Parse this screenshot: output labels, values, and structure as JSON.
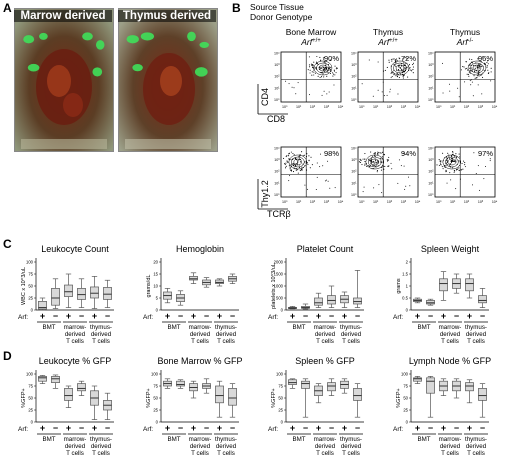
{
  "panel_letters": {
    "a": "A",
    "b": "B",
    "c": "C",
    "d": "D"
  },
  "photos": [
    {
      "label": "Marrow derived",
      "gfp_spots": 6
    },
    {
      "label": "Thymus derived",
      "gfp_spots": 6
    }
  ],
  "flow": {
    "header_line1": "Source Tissue",
    "header_line2": "Donor Genotype",
    "columns": [
      {
        "tissue": "Bone Marrow",
        "genotype": "Arf",
        "genotype_sup": "+/+"
      },
      {
        "tissue": "Thymus",
        "genotype": "Arf",
        "genotype_sup": "+/+"
      },
      {
        "tissue": "Thymus",
        "genotype": "Arf",
        "genotype_sup": "-/-"
      }
    ],
    "rows": [
      {
        "ylabel": "CD4",
        "xlabel": "CD8",
        "percents": [
          "90%",
          "72%",
          "96%"
        ],
        "quadrant": "top-right"
      },
      {
        "ylabel": "Thy1.2",
        "xlabel": "TCRβ",
        "percents": [
          "98%",
          "94%",
          "97%"
        ],
        "quadrant": "top-right"
      }
    ],
    "decade_ticks": [
      "10⁰",
      "10¹",
      "10²",
      "10³",
      "10⁴"
    ]
  },
  "groups": {
    "arf_label": "Arf:",
    "arf_signs": [
      "+",
      "−",
      "+",
      "−",
      "+",
      "−"
    ],
    "group_labels": [
      "BMT",
      "marrow-\nderived\nT cells",
      "thymus-\nderived\nT cells"
    ]
  },
  "chart_data": [
    {
      "type": "box",
      "panel": "C",
      "title": "Leukocyte Count",
      "ylabel": "WBC x 10^3/uL",
      "ylim": [
        0,
        100
      ],
      "boxes": [
        {
          "min": 0,
          "q1": 2,
          "median": 5,
          "q3": 18,
          "max": 25
        },
        {
          "min": 3,
          "q1": 10,
          "median": 25,
          "q3": 45,
          "max": 65
        },
        {
          "min": 5,
          "q1": 28,
          "median": 38,
          "q3": 52,
          "max": 75
        },
        {
          "min": 5,
          "q1": 22,
          "median": 32,
          "q3": 45,
          "max": 65
        },
        {
          "min": 3,
          "q1": 25,
          "median": 35,
          "q3": 48,
          "max": 70
        },
        {
          "min": 5,
          "q1": 22,
          "median": 33,
          "q3": 47,
          "max": 62
        }
      ]
    },
    {
      "type": "box",
      "panel": "C",
      "title": "Hemoglobin",
      "ylabel": "grams/dL",
      "ylim": [
        0,
        20
      ],
      "boxes": [
        {
          "min": 3,
          "q1": 4.5,
          "median": 6,
          "q3": 7.5,
          "max": 9
        },
        {
          "min": 2,
          "q1": 3.5,
          "median": 5,
          "q3": 6.5,
          "max": 8
        },
        {
          "min": 11,
          "q1": 12.5,
          "median": 13,
          "q3": 14,
          "max": 15.5
        },
        {
          "min": 9.5,
          "q1": 10.5,
          "median": 11.5,
          "q3": 12.5,
          "max": 13.5
        },
        {
          "min": 10,
          "q1": 11,
          "median": 11.5,
          "q3": 12.5,
          "max": 13
        },
        {
          "min": 11,
          "q1": 12,
          "median": 13,
          "q3": 14,
          "max": 15
        }
      ]
    },
    {
      "type": "box",
      "panel": "C",
      "title": "Platelet Count",
      "ylabel": "platelets x 10^3/uL",
      "ylim": [
        0,
        2000
      ],
      "boxes": [
        {
          "min": 50,
          "q1": 60,
          "median": 80,
          "q3": 110,
          "max": 150
        },
        {
          "min": 40,
          "q1": 70,
          "median": 100,
          "q3": 150,
          "max": 250
        },
        {
          "min": 100,
          "q1": 200,
          "median": 300,
          "q3": 500,
          "max": 700
        },
        {
          "min": 100,
          "q1": 250,
          "median": 400,
          "q3": 600,
          "max": 1000
        },
        {
          "min": 100,
          "q1": 300,
          "median": 450,
          "q3": 600,
          "max": 750
        },
        {
          "min": 100,
          "q1": 250,
          "median": 350,
          "q3": 500,
          "max": 1650
        }
      ]
    },
    {
      "type": "box",
      "panel": "C",
      "title": "Spleen Weight",
      "ylabel": "grams",
      "ylim": [
        0,
        2
      ],
      "boxes": [
        {
          "min": 0.3,
          "q1": 0.35,
          "median": 0.4,
          "q3": 0.45,
          "max": 0.5
        },
        {
          "min": 0.2,
          "q1": 0.25,
          "median": 0.3,
          "q3": 0.4,
          "max": 0.45
        },
        {
          "min": 0.4,
          "q1": 0.8,
          "median": 1.1,
          "q3": 1.3,
          "max": 1.6
        },
        {
          "min": 0.7,
          "q1": 0.9,
          "median": 1.1,
          "q3": 1.3,
          "max": 1.5
        },
        {
          "min": 0.5,
          "q1": 0.8,
          "median": 1.1,
          "q3": 1.3,
          "max": 1.5
        },
        {
          "min": 0.1,
          "q1": 0.3,
          "median": 0.4,
          "q3": 0.6,
          "max": 0.9
        }
      ]
    },
    {
      "type": "box",
      "panel": "D",
      "title": "Leukocyte % GFP",
      "ylabel": "%GFP+",
      "ylim": [
        0,
        100
      ],
      "boxes": [
        {
          "min": 80,
          "q1": 85,
          "median": 92,
          "q3": 95,
          "max": 97
        },
        {
          "min": 70,
          "q1": 82,
          "median": 90,
          "q3": 95,
          "max": 98
        },
        {
          "min": 30,
          "q1": 45,
          "median": 55,
          "q3": 70,
          "max": 75
        },
        {
          "min": 55,
          "q1": 65,
          "median": 70,
          "q3": 80,
          "max": 85
        },
        {
          "min": 5,
          "q1": 35,
          "median": 50,
          "q3": 65,
          "max": 75
        },
        {
          "min": 5,
          "q1": 25,
          "median": 35,
          "q3": 45,
          "max": 60
        }
      ]
    },
    {
      "type": "box",
      "panel": "D",
      "title": "Bone Marrow % GFP",
      "ylabel": "%GFP+",
      "ylim": [
        0,
        100
      ],
      "boxes": [
        {
          "min": 70,
          "q1": 75,
          "median": 80,
          "q3": 85,
          "max": 90
        },
        {
          "min": 70,
          "q1": 75,
          "median": 78,
          "q3": 85,
          "max": 88
        },
        {
          "min": 50,
          "q1": 65,
          "median": 72,
          "q3": 80,
          "max": 85
        },
        {
          "min": 60,
          "q1": 70,
          "median": 75,
          "q3": 80,
          "max": 90
        },
        {
          "min": 10,
          "q1": 40,
          "median": 55,
          "q3": 75,
          "max": 85
        },
        {
          "min": 10,
          "q1": 35,
          "median": 50,
          "q3": 70,
          "max": 80
        }
      ]
    },
    {
      "type": "box",
      "panel": "D",
      "title": "Spleen % GFP",
      "ylabel": "%GFP+",
      "ylim": [
        0,
        100
      ],
      "boxes": [
        {
          "min": 70,
          "q1": 78,
          "median": 82,
          "q3": 88,
          "max": 90
        },
        {
          "min": 10,
          "q1": 70,
          "median": 80,
          "q3": 85,
          "max": 90
        },
        {
          "min": 40,
          "q1": 55,
          "median": 65,
          "q3": 75,
          "max": 80
        },
        {
          "min": 55,
          "q1": 65,
          "median": 75,
          "q3": 82,
          "max": 90
        },
        {
          "min": 60,
          "q1": 70,
          "median": 78,
          "q3": 85,
          "max": 90
        },
        {
          "min": 10,
          "q1": 45,
          "median": 55,
          "q3": 70,
          "max": 80
        }
      ]
    },
    {
      "type": "box",
      "panel": "D",
      "title": "Lymph Node % GFP",
      "ylabel": "%GFP+",
      "ylim": [
        0,
        100
      ],
      "boxes": [
        {
          "min": 80,
          "q1": 85,
          "median": 90,
          "q3": 92,
          "max": 95
        },
        {
          "min": 10,
          "q1": 60,
          "median": 85,
          "q3": 92,
          "max": 95
        },
        {
          "min": 55,
          "q1": 65,
          "median": 75,
          "q3": 85,
          "max": 90
        },
        {
          "min": 50,
          "q1": 65,
          "median": 75,
          "q3": 85,
          "max": 90
        },
        {
          "min": 40,
          "q1": 65,
          "median": 75,
          "q3": 82,
          "max": 88
        },
        {
          "min": 10,
          "q1": 45,
          "median": 55,
          "q3": 70,
          "max": 80
        }
      ]
    }
  ],
  "colors": {
    "box_fill": "#d9d9d9",
    "box_stroke": "#555555",
    "gfp": "#3fe05a",
    "gate": "#000000"
  }
}
